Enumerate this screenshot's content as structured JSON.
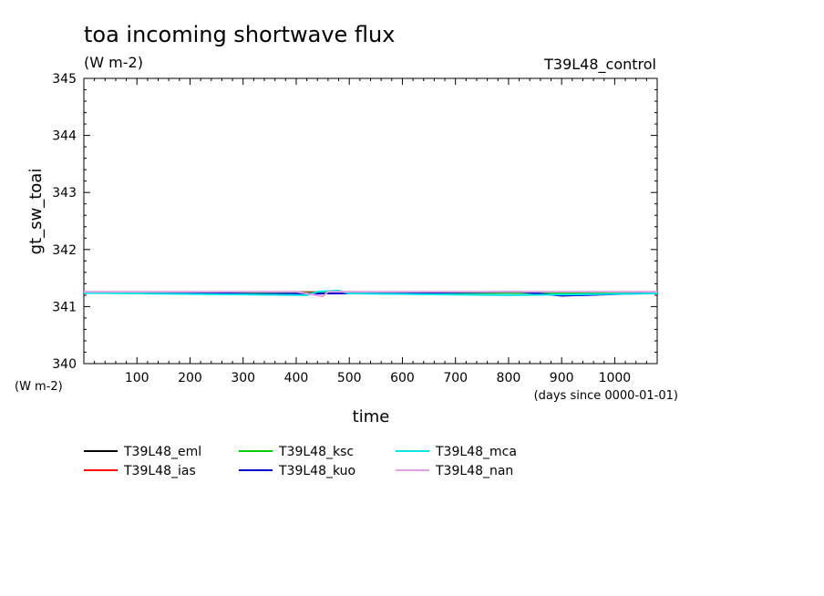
{
  "chart_data": {
    "type": "line",
    "title": "toa incoming shortwave flux",
    "units_label": "(W m-2)",
    "experiment_label": "T39L48_control",
    "ylabel": "gt_sw_toai",
    "xlabel": "time",
    "x_unit_label": "(days since 0000-01-01)",
    "y_unit_label": "(W m-2)",
    "xlim": [
      0,
      1080
    ],
    "ylim": [
      340,
      345
    ],
    "x_ticks": [
      100,
      200,
      300,
      400,
      500,
      600,
      700,
      800,
      900,
      1000
    ],
    "y_ticks": [
      340,
      341,
      342,
      343,
      344,
      345
    ],
    "x_tick_labels": [
      "100",
      "200",
      "300",
      "400",
      "500",
      "600",
      "700",
      "800",
      "900",
      "1000"
    ],
    "y_tick_labels": [
      "340",
      "341",
      "342",
      "343",
      "344",
      "345"
    ],
    "grid": false,
    "legend_position": "bottom",
    "series": [
      {
        "name": "T39L48_eml",
        "color": "#000000",
        "x": [
          0,
          200,
          400,
          600,
          800,
          1080
        ],
        "values": [
          341.25,
          341.25,
          341.25,
          341.25,
          341.25,
          341.25
        ]
      },
      {
        "name": "T39L48_ias",
        "color": "#ff0000",
        "x": [
          0,
          200,
          400,
          600,
          800,
          1080
        ],
        "values": [
          341.25,
          341.25,
          341.25,
          341.25,
          341.25,
          341.25
        ]
      },
      {
        "name": "T39L48_ksc",
        "color": "#00cc00",
        "x": [
          0,
          200,
          400,
          600,
          800,
          1080
        ],
        "values": [
          341.24,
          341.24,
          341.24,
          341.24,
          341.24,
          341.24
        ]
      },
      {
        "name": "T39L48_kuo",
        "color": "#0000cc",
        "x": [
          0,
          280,
          320,
          600,
          820,
          900,
          1080
        ],
        "values": [
          341.24,
          341.23,
          341.22,
          341.24,
          341.26,
          341.19,
          341.24
        ]
      },
      {
        "name": "T39L48_mca",
        "color": "#00e5e5",
        "x": [
          0,
          420,
          440,
          480,
          500,
          800,
          1080
        ],
        "values": [
          341.24,
          341.2,
          341.26,
          341.28,
          341.23,
          341.2,
          341.23
        ]
      },
      {
        "name": "T39L48_nan",
        "color": "#e0a0e0",
        "x": [
          0,
          400,
          450,
          460,
          700,
          1080
        ],
        "values": [
          341.26,
          341.26,
          341.18,
          341.26,
          341.26,
          341.26
        ]
      }
    ]
  }
}
